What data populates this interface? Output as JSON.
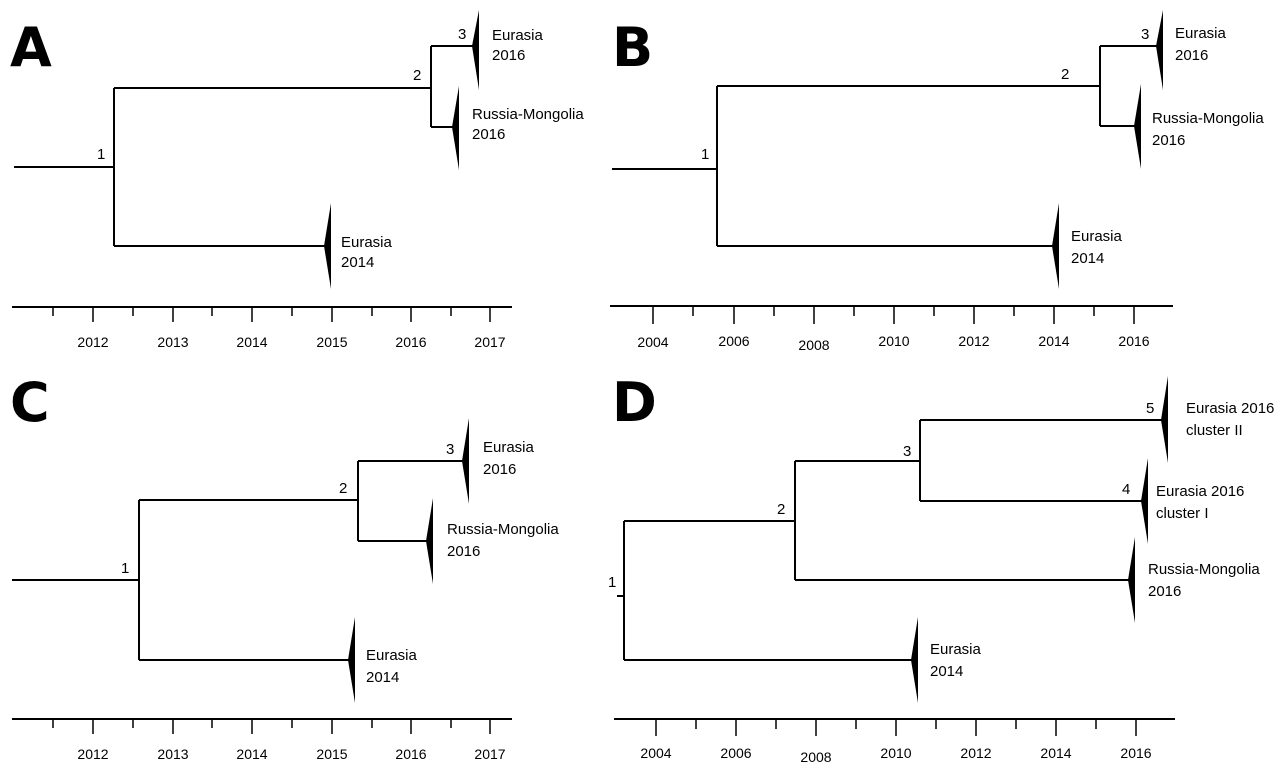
{
  "colors": {
    "ink": "#000000",
    "background": "#ffffff"
  },
  "panels": [
    {
      "letter": "A",
      "axis_ticks": [
        "2012",
        "2013",
        "2014",
        "2015",
        "2016",
        "2017"
      ],
      "nodes": [
        {
          "id": "n1",
          "label": "1"
        },
        {
          "id": "n2",
          "label": "2"
        },
        {
          "id": "n3",
          "label": "3"
        }
      ],
      "clades": [
        {
          "id": "c1",
          "lines": [
            "Eurasia",
            "2016"
          ]
        },
        {
          "id": "c2",
          "lines": [
            "Russia-Mongolia",
            "2016"
          ]
        },
        {
          "id": "c3",
          "lines": [
            "Eurasia",
            "2014"
          ]
        }
      ]
    },
    {
      "letter": "B",
      "axis_ticks": [
        "2004",
        "2006",
        "2008",
        "2010",
        "2012",
        "2014",
        "2016"
      ],
      "nodes": [
        {
          "id": "n1",
          "label": "1"
        },
        {
          "id": "n2",
          "label": "2"
        },
        {
          "id": "n3",
          "label": "3"
        }
      ],
      "clades": [
        {
          "id": "c1",
          "lines": [
            "Eurasia",
            "2016"
          ]
        },
        {
          "id": "c2",
          "lines": [
            "Russia-Mongolia",
            "2016"
          ]
        },
        {
          "id": "c3",
          "lines": [
            "Eurasia",
            "2014"
          ]
        }
      ]
    },
    {
      "letter": "C",
      "axis_ticks": [
        "2012",
        "2013",
        "2014",
        "2015",
        "2016",
        "2017"
      ],
      "nodes": [
        {
          "id": "n1",
          "label": "1"
        },
        {
          "id": "n2",
          "label": "2"
        },
        {
          "id": "n3",
          "label": "3"
        }
      ],
      "clades": [
        {
          "id": "c1",
          "lines": [
            "Eurasia",
            "2016"
          ]
        },
        {
          "id": "c2",
          "lines": [
            "Russia-Mongolia",
            "2016"
          ]
        },
        {
          "id": "c3",
          "lines": [
            "Eurasia",
            "2014"
          ]
        }
      ]
    },
    {
      "letter": "D",
      "axis_ticks": [
        "2004",
        "2006",
        "2008",
        "2010",
        "2012",
        "2014",
        "2016"
      ],
      "nodes": [
        {
          "id": "n1",
          "label": "1"
        },
        {
          "id": "n2",
          "label": "2"
        },
        {
          "id": "n3",
          "label": "3"
        },
        {
          "id": "n4",
          "label": "4"
        },
        {
          "id": "n5",
          "label": "5"
        }
      ],
      "clades": [
        {
          "id": "c1",
          "lines": [
            "Eurasia 2016",
            "cluster II"
          ]
        },
        {
          "id": "c2",
          "lines": [
            "Eurasia 2016",
            "cluster  I"
          ]
        },
        {
          "id": "c3",
          "lines": [
            "Russia-Mongolia",
            "2016"
          ]
        },
        {
          "id": "c4",
          "lines": [
            "Eurasia",
            "2014"
          ]
        }
      ]
    }
  ]
}
